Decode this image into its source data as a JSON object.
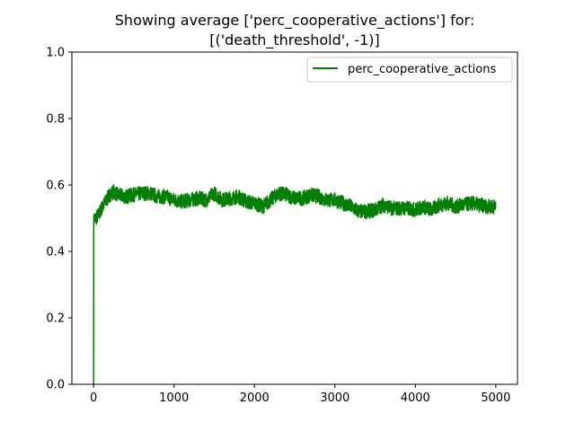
{
  "chart_data": {
    "type": "line",
    "title_lines": [
      "Showing average ['perc_cooperative_actions'] for:",
      "[('death_threshold', -1)]"
    ],
    "xlabel": "",
    "ylabel": "",
    "xlim": [
      -270,
      5270
    ],
    "ylim": [
      0,
      1
    ],
    "x_ticks": [
      0,
      1000,
      2000,
      3000,
      4000,
      5000
    ],
    "x_tick_labels": [
      "0",
      "1000",
      "2000",
      "3000",
      "4000",
      "5000"
    ],
    "y_ticks": [
      0,
      0.2,
      0.4,
      0.6,
      0.8,
      1.0
    ],
    "y_tick_labels": [
      "0.0",
      "0.2",
      "0.4",
      "0.6",
      "0.8",
      "1.0"
    ],
    "grid": false,
    "legend_position": "upper right",
    "series": [
      {
        "name": "perc_cooperative_actions",
        "color": "#008000",
        "x": [
          0,
          1,
          10,
          30,
          60,
          100,
          150,
          200,
          250,
          300,
          400,
          500,
          600,
          700,
          800,
          900,
          1000,
          1100,
          1200,
          1300,
          1400,
          1500,
          1600,
          1700,
          1800,
          1900,
          2000,
          2100,
          2200,
          2300,
          2400,
          2500,
          2600,
          2700,
          2800,
          2900,
          3000,
          3100,
          3200,
          3300,
          3400,
          3500,
          3600,
          3700,
          3800,
          3900,
          4000,
          4100,
          4200,
          4300,
          4400,
          4500,
          4600,
          4700,
          4800,
          4900,
          5000
        ],
        "values": [
          0.0,
          0.49,
          0.5,
          0.5,
          0.51,
          0.53,
          0.55,
          0.57,
          0.58,
          0.57,
          0.565,
          0.57,
          0.575,
          0.575,
          0.565,
          0.565,
          0.555,
          0.55,
          0.555,
          0.56,
          0.555,
          0.575,
          0.555,
          0.56,
          0.565,
          0.55,
          0.545,
          0.535,
          0.555,
          0.575,
          0.57,
          0.56,
          0.56,
          0.57,
          0.565,
          0.555,
          0.555,
          0.545,
          0.535,
          0.52,
          0.52,
          0.525,
          0.54,
          0.53,
          0.53,
          0.53,
          0.525,
          0.535,
          0.525,
          0.54,
          0.545,
          0.535,
          0.54,
          0.545,
          0.54,
          0.535,
          0.535
        ],
        "noise_amplitude": 0.022
      }
    ]
  }
}
